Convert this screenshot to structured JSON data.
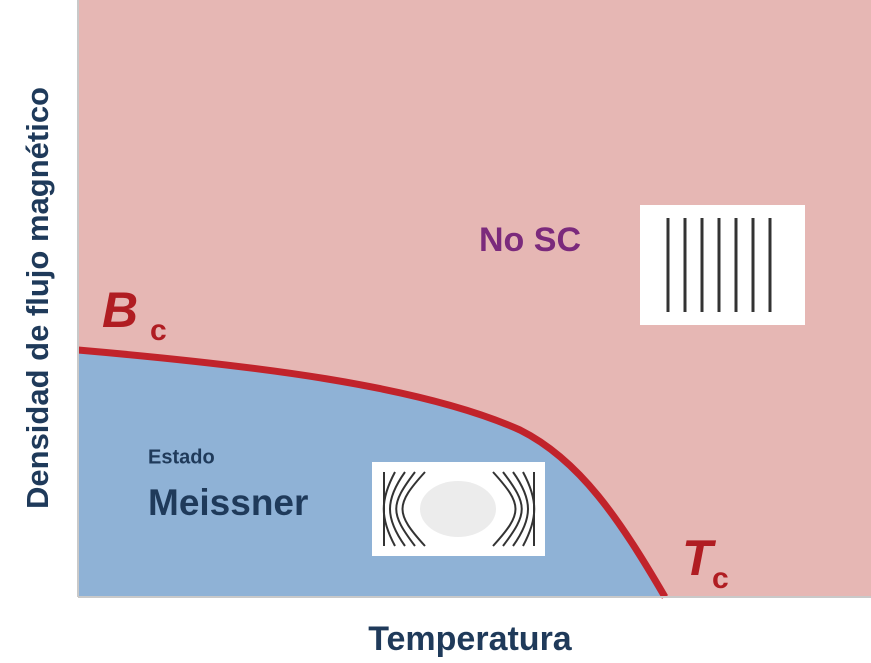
{
  "axes": {
    "y_label": "Densidad de flujo magnético",
    "x_label": "Temperatura"
  },
  "regions": {
    "normal": {
      "label": "No SC"
    },
    "meissner": {
      "label_small": "Estado",
      "label": "Meissner"
    }
  },
  "curve_labels": {
    "bc": {
      "symbol": "B",
      "subscript": "c"
    },
    "tc": {
      "symbol": "T",
      "subscript": "c"
    }
  }
}
